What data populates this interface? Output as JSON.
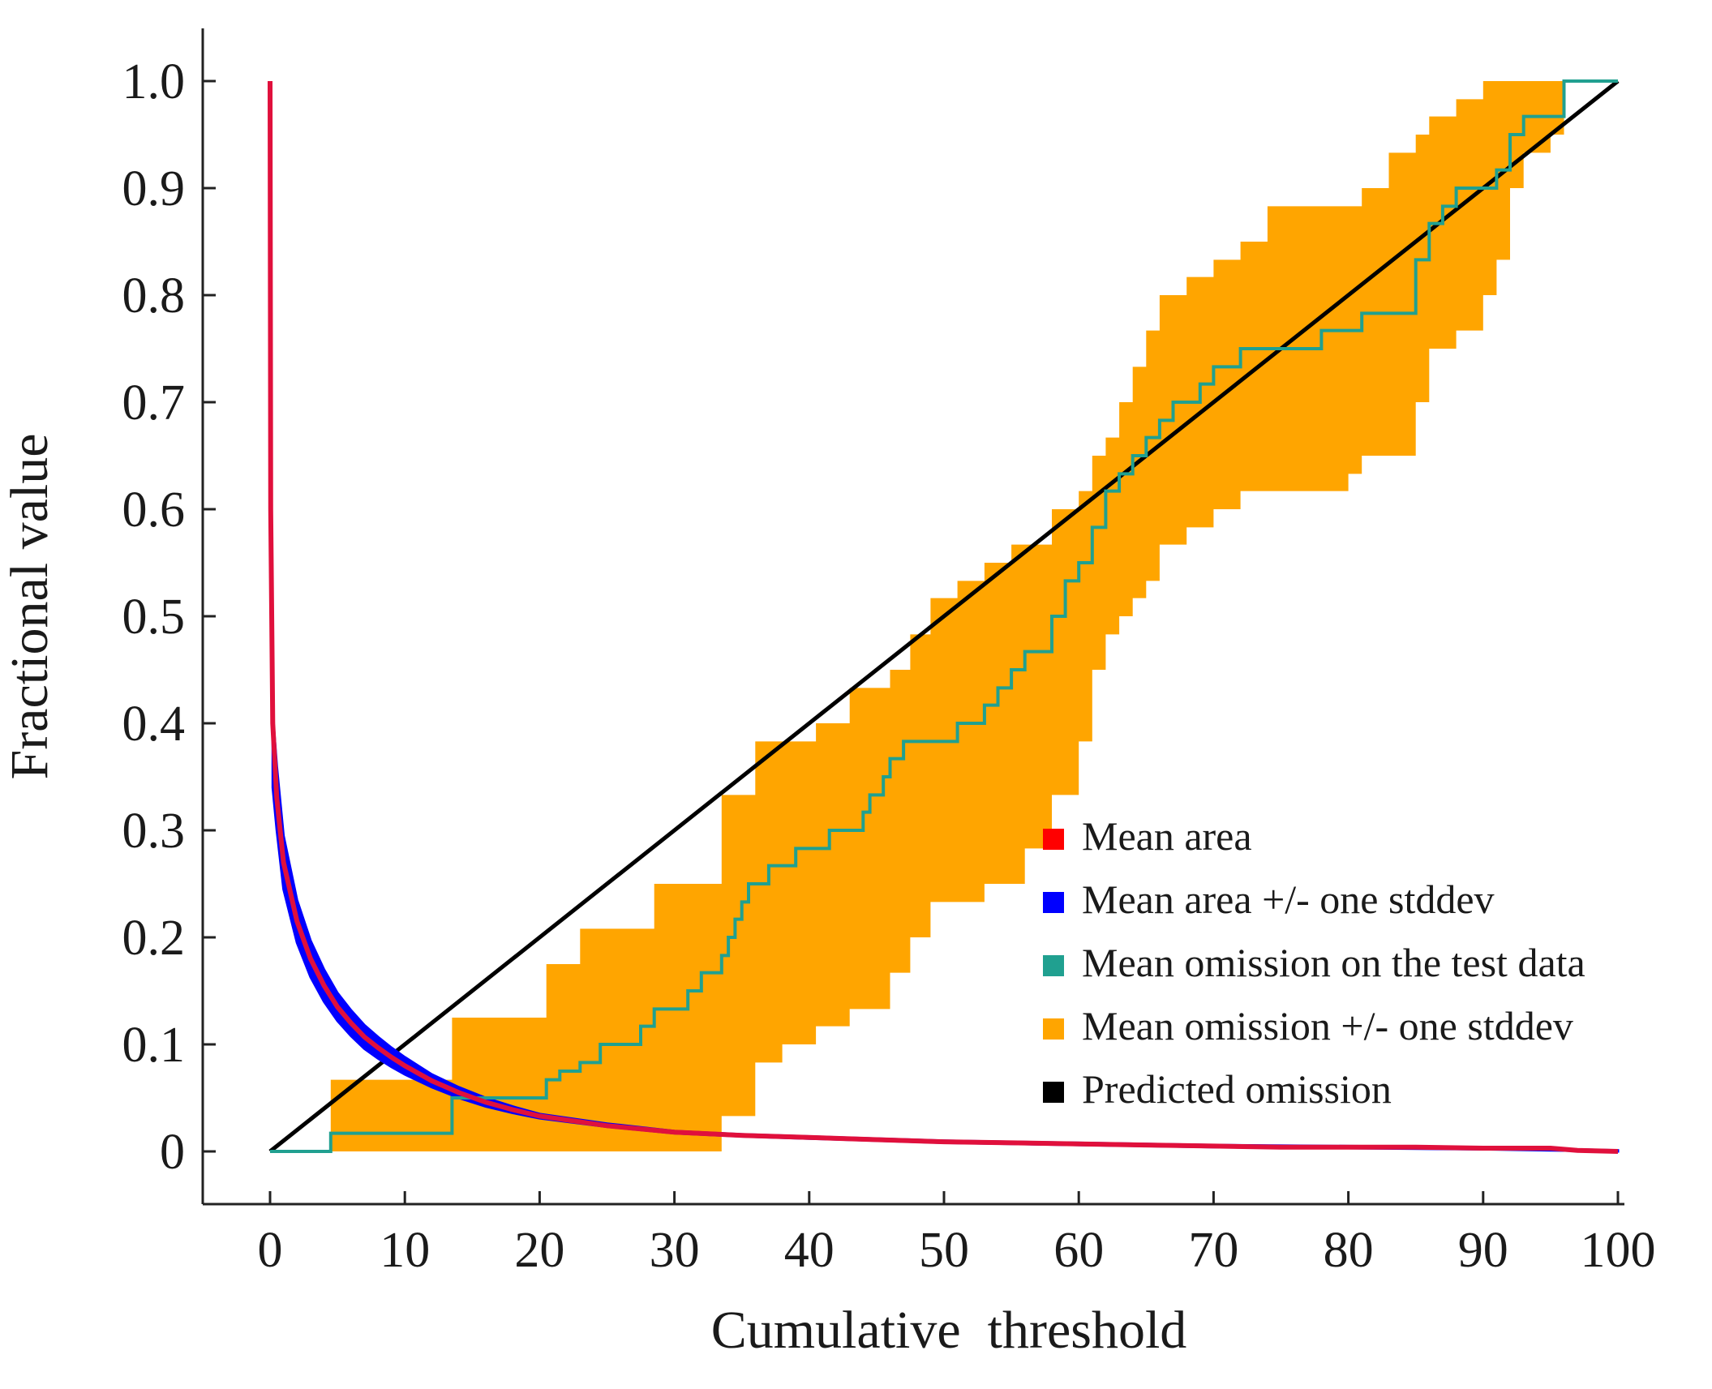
{
  "chart_data": {
    "type": "line",
    "title": "",
    "xlabel": "Cumulative  threshold",
    "ylabel": "Fractional value",
    "xlim": [
      0,
      100
    ],
    "ylim": [
      0,
      1.0
    ],
    "xticks": [
      0,
      10,
      20,
      30,
      40,
      50,
      60,
      70,
      80,
      90,
      100
    ],
    "xtick_labels": [
      "0",
      "10",
      "20",
      "30",
      "40",
      "50",
      "60",
      "70",
      "80",
      "90",
      "100"
    ],
    "yticks": [
      0,
      0.1,
      0.2,
      0.3,
      0.4,
      0.5,
      0.6,
      0.7,
      0.8,
      0.9,
      1.0
    ],
    "ytick_labels": [
      "0",
      "0.1",
      "0.2",
      "0.3",
      "0.4",
      "0.5",
      "0.6",
      "0.7",
      "0.8",
      "0.9",
      "1.0"
    ],
    "grid": false,
    "legend_position": "bottom-right",
    "series": [
      {
        "name": "Mean area",
        "color": "#ff0000",
        "kind": "line",
        "x": [
          0,
          0.05,
          0.2,
          0.5,
          1,
          2,
          3,
          4,
          5,
          6,
          7,
          8,
          9,
          10,
          12,
          14,
          16,
          18,
          20,
          25,
          30,
          35,
          40,
          45,
          50,
          55,
          60,
          65,
          70,
          75,
          80,
          85,
          90,
          95,
          97,
          100
        ],
        "y": [
          1.0,
          0.6,
          0.4,
          0.33,
          0.27,
          0.215,
          0.18,
          0.155,
          0.135,
          0.12,
          0.107,
          0.097,
          0.088,
          0.08,
          0.066,
          0.055,
          0.046,
          0.039,
          0.033,
          0.024,
          0.018,
          0.015,
          0.013,
          0.011,
          0.009,
          0.008,
          0.007,
          0.006,
          0.005,
          0.004,
          0.004,
          0.004,
          0.003,
          0.003,
          0.001,
          0.0
        ]
      },
      {
        "name": "Mean area +/- one stddev",
        "color": "#0000ff",
        "kind": "band",
        "x": [
          0.2,
          0.5,
          1,
          2,
          3,
          4,
          5,
          6,
          7,
          8,
          9,
          10,
          12,
          14,
          16,
          18,
          20,
          25,
          30,
          35,
          40,
          50,
          60,
          70,
          80,
          90,
          100
        ],
        "lower": [
          0.34,
          0.3,
          0.245,
          0.195,
          0.163,
          0.14,
          0.122,
          0.108,
          0.096,
          0.087,
          0.079,
          0.072,
          0.06,
          0.05,
          0.042,
          0.036,
          0.031,
          0.023,
          0.017,
          0.014,
          0.012,
          0.008,
          0.006,
          0.004,
          0.003,
          0.002,
          0.0
        ],
        "upper": [
          0.41,
          0.36,
          0.295,
          0.235,
          0.197,
          0.17,
          0.148,
          0.132,
          0.118,
          0.107,
          0.097,
          0.088,
          0.072,
          0.06,
          0.05,
          0.042,
          0.035,
          0.026,
          0.019,
          0.016,
          0.014,
          0.01,
          0.008,
          0.006,
          0.005,
          0.004,
          0.001
        ]
      },
      {
        "name": "Mean omission on the test data",
        "color": "#20a090",
        "kind": "step",
        "x": [
          0,
          4.5,
          13.5,
          20.5,
          21.5,
          23,
          24.5,
          27.5,
          28.5,
          29.5,
          31,
          32,
          33.5,
          34,
          34.5,
          35,
          35.5,
          36,
          37,
          38,
          39,
          40.5,
          41.5,
          43,
          44,
          44.5,
          45.5,
          46,
          46.5,
          47,
          47.5,
          48,
          49,
          51,
          52,
          53,
          54,
          55,
          56,
          57,
          58,
          59,
          60,
          61,
          62,
          63,
          64,
          65,
          66,
          67,
          68,
          69,
          70,
          71,
          72,
          73,
          74,
          78,
          80,
          81,
          83,
          85,
          86,
          87,
          88,
          89,
          91,
          92,
          93,
          95,
          96,
          100
        ],
        "y": [
          0,
          0.017,
          0.05,
          0.067,
          0.075,
          0.083,
          0.1,
          0.117,
          0.133,
          0.133,
          0.15,
          0.167,
          0.183,
          0.2,
          0.217,
          0.233,
          0.25,
          0.25,
          0.267,
          0.267,
          0.283,
          0.283,
          0.3,
          0.3,
          0.317,
          0.333,
          0.35,
          0.367,
          0.367,
          0.383,
          0.383,
          0.383,
          0.383,
          0.4,
          0.4,
          0.417,
          0.433,
          0.45,
          0.467,
          0.467,
          0.5,
          0.533,
          0.55,
          0.583,
          0.617,
          0.633,
          0.65,
          0.667,
          0.683,
          0.7,
          0.7,
          0.717,
          0.733,
          0.733,
          0.75,
          0.75,
          0.75,
          0.767,
          0.767,
          0.783,
          0.783,
          0.833,
          0.867,
          0.883,
          0.9,
          0.9,
          0.917,
          0.95,
          0.967,
          0.967,
          1.0,
          1.0
        ]
      },
      {
        "name": "Mean omission +/- one stddev",
        "color": "#ffa500",
        "kind": "band",
        "x": [
          4.5,
          13.5,
          20.5,
          23,
          28.5,
          33.5,
          36,
          38,
          40.5,
          43,
          46,
          47.5,
          49,
          51,
          53,
          55,
          56,
          58,
          60,
          61,
          62,
          63,
          64,
          65,
          66,
          68,
          70,
          72,
          74,
          78,
          80,
          81,
          83,
          85,
          86,
          88,
          90,
          91,
          92,
          93,
          95,
          96
        ],
        "lower": [
          0,
          0,
          0,
          0,
          0,
          0.033,
          0.083,
          0.1,
          0.117,
          0.133,
          0.167,
          0.2,
          0.233,
          0.233,
          0.25,
          0.25,
          0.283,
          0.333,
          0.383,
          0.45,
          0.483,
          0.5,
          0.517,
          0.533,
          0.567,
          0.583,
          0.6,
          0.617,
          0.617,
          0.617,
          0.633,
          0.65,
          0.65,
          0.7,
          0.75,
          0.767,
          0.8,
          0.833,
          0.9,
          0.933,
          0.95,
          1.0
        ],
        "upper": [
          0.067,
          0.125,
          0.175,
          0.208,
          0.25,
          0.333,
          0.383,
          0.383,
          0.4,
          0.433,
          0.45,
          0.483,
          0.517,
          0.533,
          0.55,
          0.567,
          0.567,
          0.6,
          0.617,
          0.65,
          0.667,
          0.7,
          0.733,
          0.767,
          0.8,
          0.817,
          0.833,
          0.85,
          0.883,
          0.883,
          0.883,
          0.9,
          0.933,
          0.95,
          0.967,
          0.983,
          1.0,
          1.0,
          1.0,
          1.0,
          1.0,
          1.0
        ]
      },
      {
        "name": "Predicted omission",
        "color": "#000000",
        "kind": "line",
        "x": [
          0,
          100
        ],
        "y": [
          0,
          1.0
        ]
      }
    ],
    "legend": [
      {
        "label": "Mean area",
        "color": "#ff0000"
      },
      {
        "label": "Mean area +/- one stddev",
        "color": "#0000ff"
      },
      {
        "label": "Mean omission on the test data",
        "color": "#20a090"
      },
      {
        "label": "Mean omission +/- one stddev",
        "color": "#ffa500"
      },
      {
        "label": "Predicted omission",
        "color": "#000000"
      }
    ]
  }
}
